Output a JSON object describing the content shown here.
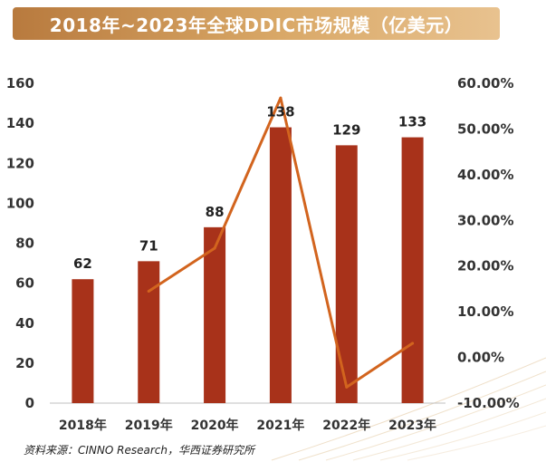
{
  "header": {
    "title": "2018年~2023年全球DDIC市场规模（亿美元）"
  },
  "source": "资料来源：CINNO Research，华西证券研究所",
  "colors": {
    "bar": "#a8321a",
    "line": "#d2641e",
    "title_bg": "#c8904f"
  },
  "chart_data": {
    "type": "bar",
    "categories": [
      "2018年",
      "2019年",
      "2020年",
      "2021年",
      "2022年",
      "2023年"
    ],
    "series": [
      {
        "type": "bar",
        "axis": "left",
        "values": [
          62,
          71,
          88,
          138,
          129,
          133
        ],
        "labels": [
          "62",
          "71",
          "88",
          "138",
          "129",
          "133"
        ]
      },
      {
        "type": "line",
        "axis": "right",
        "values": [
          null,
          14.5,
          23.9,
          56.8,
          -6.5,
          3.1
        ]
      }
    ],
    "y_left": {
      "range": [
        0,
        160
      ],
      "ticks": [
        0,
        20,
        40,
        60,
        80,
        100,
        120,
        140,
        160
      ],
      "tick_labels": [
        "0",
        "20",
        "40",
        "60",
        "80",
        "100",
        "120",
        "140",
        "160"
      ]
    },
    "y_right": {
      "range": [
        -10,
        60
      ],
      "ticks": [
        -10,
        0,
        10,
        20,
        30,
        40,
        50,
        60
      ],
      "tick_labels": [
        "-10.00%",
        "0.00%",
        "10.00%",
        "20.00%",
        "30.00%",
        "40.00%",
        "50.00%",
        "60.00%"
      ]
    },
    "grid": false,
    "legend": "none"
  }
}
